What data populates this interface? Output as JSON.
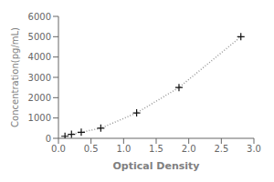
{
  "chart_data": {
    "type": "line",
    "x": [
      0.1,
      0.2,
      0.35,
      0.65,
      1.2,
      1.85,
      2.8
    ],
    "values": [
      100,
      200,
      300,
      500,
      1250,
      2500,
      5000
    ],
    "xlabel": "Optical Density",
    "ylabel": "Concentration(pg/mL)",
    "xlim": [
      0,
      3
    ],
    "ylim": [
      0,
      6000
    ],
    "xticks": [
      {
        "value": 0,
        "label": "0.0"
      },
      0.5,
      {
        "value": 1,
        "label": "1.0"
      },
      1.5,
      {
        "value": 2,
        "label": "2.0"
      },
      2.5,
      {
        "value": 3,
        "label": "3.0"
      }
    ],
    "yticks": [
      0,
      1000,
      2000,
      3000,
      4000,
      5000,
      6000
    ],
    "color": "#999999",
    "marker": "plus",
    "line_style": "dotted",
    "grid": false
  }
}
